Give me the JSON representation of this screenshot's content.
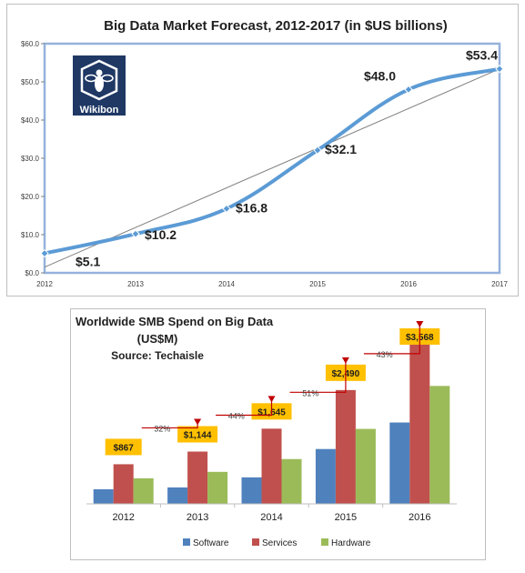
{
  "chart_data": [
    {
      "type": "line",
      "title": "Big Data Market Forecast, 2012-2017 (in $US billions)",
      "x": [
        "2012",
        "2013",
        "2014",
        "2015",
        "2016",
        "2017"
      ],
      "y_ticks": [
        "$0.0",
        "$10.0",
        "$20.0",
        "$30.0",
        "$40.0",
        "$50.0",
        "$60.0"
      ],
      "ylim": [
        0,
        60
      ],
      "series": [
        {
          "values": [
            5.1,
            10.2,
            16.8,
            32.1,
            48.0,
            53.4
          ],
          "labels": [
            "$5.1",
            "$10.2",
            "$16.8",
            "$32.1",
            "$48.0",
            "$53.4"
          ],
          "color": "#5b9bd5"
        }
      ],
      "trendline": {
        "start": 1.5,
        "end": 53.4,
        "color": "#808080"
      },
      "logo_text": "Wikibon",
      "grid": false
    },
    {
      "type": "bar",
      "title": "Worldwide SMB Spend on Big Data",
      "title_line2": "(US$M)",
      "subtitle": "Source: Techaisle",
      "categories": [
        "2012",
        "2013",
        "2014",
        "2015",
        "2016"
      ],
      "ylim": [
        0,
        3800
      ],
      "series": [
        {
          "name": "Software",
          "color": "#4f81bd",
          "values": [
            320,
            360,
            580,
            1200,
            1780
          ]
        },
        {
          "name": "Services",
          "color": "#c0504d",
          "values": [
            867,
            1144,
            1645,
            2490,
            3568
          ]
        },
        {
          "name": "Hardware",
          "color": "#9bbb59",
          "values": [
            560,
            700,
            980,
            1640,
            2580
          ]
        }
      ],
      "total_labels": [
        "$867",
        "$1,144",
        "$1,645",
        "$2,490",
        "$3,568"
      ],
      "growth_labels": [
        "32%",
        "44%",
        "51%",
        "43%"
      ],
      "legend_position": "bottom",
      "label_color": "#ffc000",
      "arrow_color": "#c00000"
    }
  ]
}
